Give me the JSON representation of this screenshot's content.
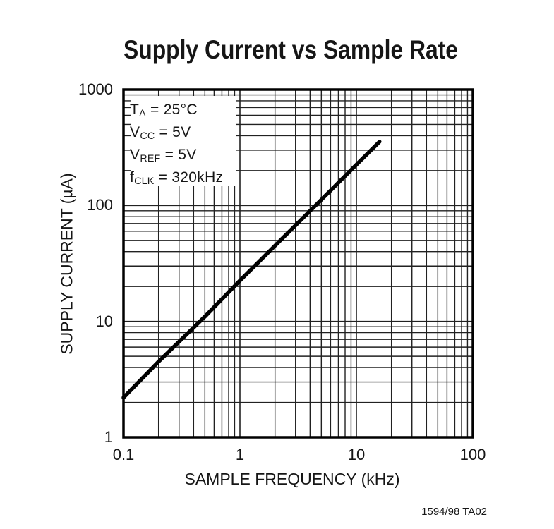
{
  "page": {
    "footer_code": "1594/98 TA02"
  },
  "colors": {
    "line": "#000000",
    "grid": "#212121",
    "border": "#000000",
    "background": "#ffffff",
    "text": "#161616"
  },
  "chart_data": {
    "type": "line",
    "title": "Supply Current vs Sample Rate",
    "xlabel": "SAMPLE FREQUENCY (kHz)",
    "ylabel": "SUPPLY CURRENT (µA)",
    "x_scale": "log",
    "y_scale": "log",
    "xlim": [
      0.1,
      100
    ],
    "ylim": [
      1,
      1000
    ],
    "x_ticks": [
      "0.1",
      "1",
      "10",
      "100"
    ],
    "y_ticks": [
      "1000",
      "100",
      "10",
      "1"
    ],
    "grid": "full log-log minor grid, all decades, lines 2-9 in each decade",
    "legend": "none",
    "series": [
      {
        "name": "Supply Current",
        "color": "#000000",
        "points": [
          [
            0.1,
            2.2
          ],
          [
            0.2,
            4.5
          ],
          [
            0.5,
            11
          ],
          [
            1,
            22.5
          ],
          [
            2,
            45
          ],
          [
            5,
            112
          ],
          [
            10,
            225
          ],
          [
            15.8,
            355
          ]
        ]
      }
    ],
    "conditions": [
      {
        "pre": "T",
        "sub": "A",
        "post": " = 25°C"
      },
      {
        "pre": "V",
        "sub": "CC",
        "post": " = 5V"
      },
      {
        "pre": "V",
        "sub": "REF",
        "post": " = 5V"
      },
      {
        "pre": "f",
        "sub": "CLK",
        "post": " = 320kHz"
      }
    ]
  }
}
